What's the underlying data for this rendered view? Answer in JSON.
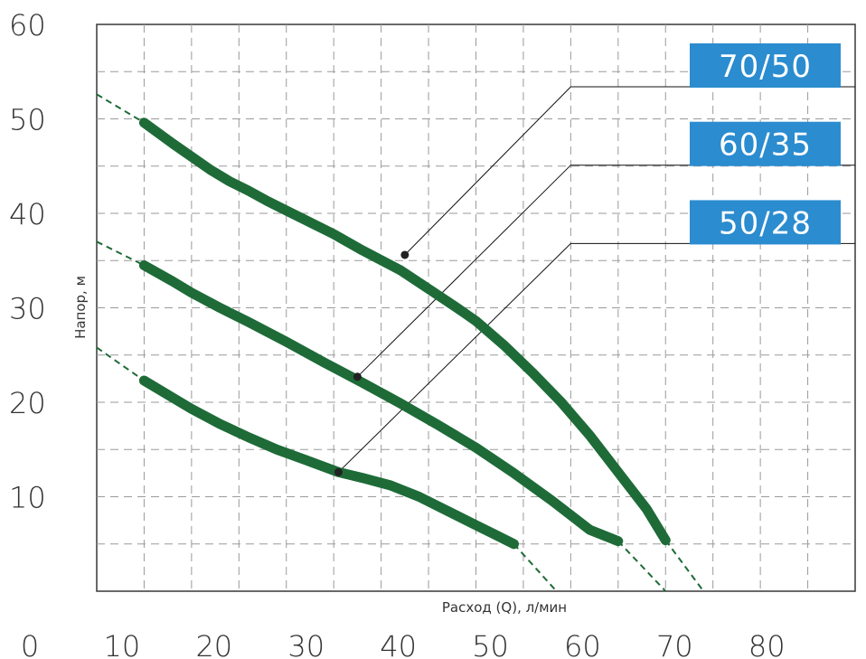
{
  "chart_data": {
    "type": "line",
    "xlabel": "Расход (Q), л/мин",
    "ylabel": "Напор, м",
    "xlim": [
      0,
      80
    ],
    "ylim": [
      0,
      60
    ],
    "x_ticks": [
      "0",
      "10",
      "20",
      "30",
      "40",
      "50",
      "60",
      "70",
      "80"
    ],
    "y_ticks": [
      "10",
      "20",
      "30",
      "40",
      "50",
      "60"
    ],
    "grid": true,
    "colors": {
      "curve": "#1e6b38",
      "label_bg": "#2b8ccf",
      "grid": "#9a9a9a",
      "axis": "#444444"
    },
    "series": [
      {
        "name": "70/50",
        "points": [
          [
            5,
            49.6
          ],
          [
            8,
            47.4
          ],
          [
            10,
            46
          ],
          [
            12,
            44.6
          ],
          [
            14,
            43.4
          ],
          [
            16,
            42.4
          ],
          [
            18,
            41.3
          ],
          [
            20,
            40.3
          ],
          [
            22,
            39.3
          ],
          [
            25,
            37.8
          ],
          [
            28,
            36.1
          ],
          [
            32,
            34
          ],
          [
            35,
            32
          ],
          [
            38,
            30
          ],
          [
            40,
            28.6
          ],
          [
            43,
            26
          ],
          [
            46,
            23.1
          ],
          [
            49,
            20
          ],
          [
            52,
            16.5
          ],
          [
            55,
            12.6
          ],
          [
            58,
            8.7
          ],
          [
            60,
            5.4
          ]
        ],
        "extrap_start": [
          [
            0,
            52.6
          ],
          [
            5,
            49.6
          ]
        ],
        "extrap_end": [
          [
            60,
            5.4
          ],
          [
            64,
            0
          ]
        ],
        "marker": [
          32.5,
          35.6
        ]
      },
      {
        "name": "60/35",
        "points": [
          [
            5,
            34.5
          ],
          [
            8,
            32.8
          ],
          [
            10,
            31.6
          ],
          [
            13,
            30
          ],
          [
            16,
            28.5
          ],
          [
            20,
            26.4
          ],
          [
            24,
            24.2
          ],
          [
            28,
            22.1
          ],
          [
            32,
            19.9
          ],
          [
            36,
            17.6
          ],
          [
            40,
            15.2
          ],
          [
            44,
            12.5
          ],
          [
            48,
            9.6
          ],
          [
            52,
            6.5
          ],
          [
            55,
            5.3
          ]
        ],
        "extrap_start": [
          [
            0,
            37
          ],
          [
            5,
            34.5
          ]
        ],
        "extrap_end": [
          [
            55,
            5.3
          ],
          [
            60,
            0
          ]
        ],
        "marker": [
          27.5,
          22.7
        ]
      },
      {
        "name": "50/28",
        "points": [
          [
            5,
            22.3
          ],
          [
            8,
            20.5
          ],
          [
            10,
            19.3
          ],
          [
            13,
            17.7
          ],
          [
            16,
            16.3
          ],
          [
            19,
            15
          ],
          [
            22,
            13.9
          ],
          [
            25.5,
            12.6
          ],
          [
            28,
            12
          ],
          [
            31,
            11.2
          ],
          [
            34,
            10
          ],
          [
            37,
            8.5
          ],
          [
            40,
            7
          ],
          [
            42,
            6
          ],
          [
            44,
            5
          ]
        ],
        "extrap_start": [
          [
            0,
            25.8
          ],
          [
            5,
            22.3
          ]
        ],
        "extrap_end": [
          [
            44,
            5
          ],
          [
            48.5,
            0
          ]
        ],
        "marker": [
          25.5,
          12.6
        ]
      }
    ],
    "leader_points": [
      [
        50,
        53.4
      ],
      [
        50,
        45.1
      ],
      [
        50,
        36.8
      ]
    ],
    "labels": [
      "70/50",
      "60/35",
      "50/28"
    ]
  }
}
